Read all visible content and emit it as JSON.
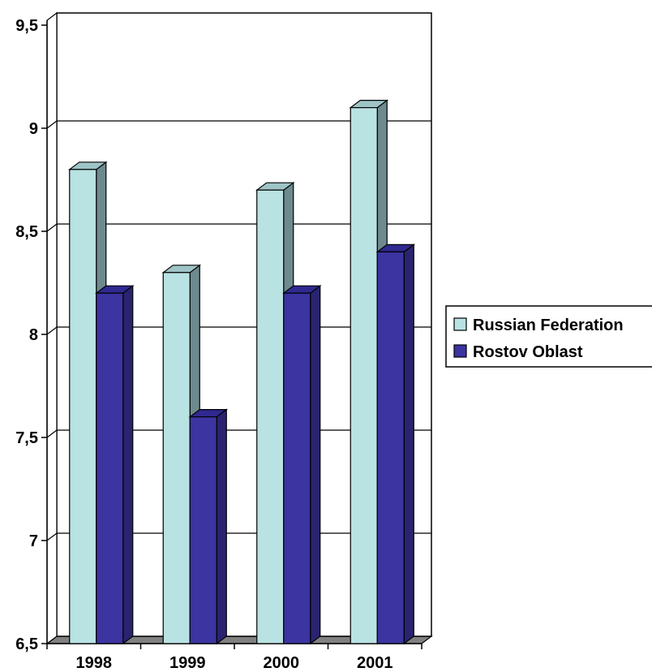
{
  "chart_data": {
    "type": "bar",
    "categories": [
      "1998",
      "1999",
      "2000",
      "2001"
    ],
    "series": [
      {
        "name": "Russian Federation",
        "values": [
          8.8,
          8.3,
          8.7,
          9.1
        ],
        "color": "#b9e2e3"
      },
      {
        "name": "Rostov Oblast",
        "values": [
          8.2,
          7.6,
          8.2,
          8.4
        ],
        "color": "#3c34a0"
      }
    ],
    "ylim": [
      6.5,
      9.5
    ],
    "yticks": [
      "6,5",
      "7",
      "7,5",
      "8",
      "8,5",
      "9",
      "9,5"
    ],
    "title": "",
    "xlabel": "",
    "ylabel": "",
    "grid": true,
    "legend_position": "right",
    "style": "3d-clustered-column"
  }
}
